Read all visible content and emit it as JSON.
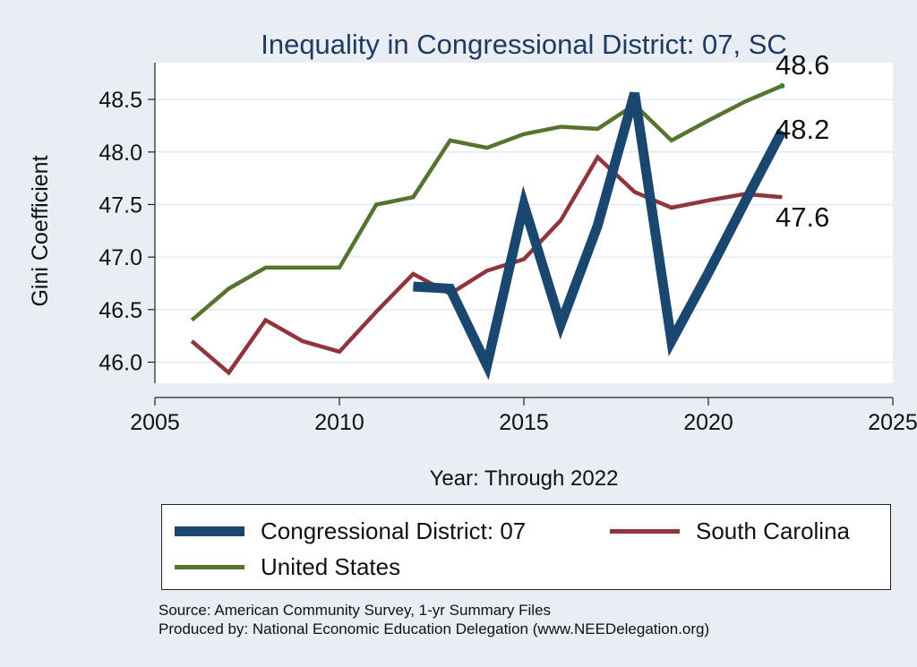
{
  "colors": {
    "district": "#1a476f",
    "state": "#90353b",
    "us": "#55752f",
    "title": "#1f3a64",
    "plot_bg": "#ffffff",
    "outer_bg": "#e8eef3"
  },
  "chart_data": {
    "type": "line",
    "title": "Inequality in Congressional District:  07, SC",
    "xlabel": "Year: Through 2022",
    "ylabel": "Gini Coefficient",
    "xlim": [
      2005,
      2025
    ],
    "ylim": [
      45.8,
      48.85
    ],
    "xticks": [
      "2005",
      "2010",
      "2015",
      "2020",
      "2025"
    ],
    "xtick_values": [
      2005,
      2010,
      2015,
      2020,
      2025
    ],
    "yticks": [
      "46.0",
      "46.5",
      "47.0",
      "47.5",
      "48.0",
      "48.5"
    ],
    "ytick_values": [
      46.0,
      46.5,
      47.0,
      47.5,
      48.0,
      48.5
    ],
    "grid": true,
    "legend_position": "bottom",
    "series": [
      {
        "name": "Congressional District:  07",
        "key": "district",
        "x": [
          2012,
          2013,
          2014,
          2015,
          2016,
          2017,
          2018,
          2019,
          2020,
          2021,
          2022
        ],
        "values": [
          46.72,
          46.7,
          45.97,
          47.5,
          46.36,
          47.3,
          48.56,
          46.2,
          46.85,
          47.53,
          48.2
        ],
        "end_label": "48.2"
      },
      {
        "name": "South Carolina",
        "key": "state",
        "x": [
          2006,
          2007,
          2008,
          2009,
          2010,
          2011,
          2012,
          2013,
          2014,
          2015,
          2016,
          2017,
          2018,
          2019,
          2020,
          2021,
          2022
        ],
        "values": [
          46.2,
          45.9,
          46.4,
          46.2,
          46.1,
          46.48,
          46.84,
          46.65,
          46.87,
          46.98,
          47.35,
          47.95,
          47.62,
          47.47,
          47.54,
          47.6,
          47.57
        ],
        "end_label": "47.6"
      },
      {
        "name": "United States",
        "key": "us",
        "x": [
          2006,
          2007,
          2008,
          2009,
          2010,
          2011,
          2012,
          2013,
          2014,
          2015,
          2016,
          2017,
          2018,
          2019,
          2020,
          2021,
          2022
        ],
        "values": [
          46.4,
          46.7,
          46.9,
          46.9,
          46.9,
          47.5,
          47.57,
          48.11,
          48.04,
          48.17,
          48.24,
          48.22,
          48.45,
          48.11,
          48.3,
          48.48,
          48.63
        ],
        "end_label": "48.6"
      }
    ]
  },
  "legend": {
    "items": [
      {
        "label": "Congressional District:  07",
        "key": "district"
      },
      {
        "label": "South Carolina",
        "key": "state"
      },
      {
        "label": "United States",
        "key": "us"
      }
    ]
  },
  "source": {
    "line1": "Source: American Community Survey, 1-yr Summary Files",
    "line2": "Produced by: National Economic Education Delegation (www.NEEDelegation.org)"
  }
}
